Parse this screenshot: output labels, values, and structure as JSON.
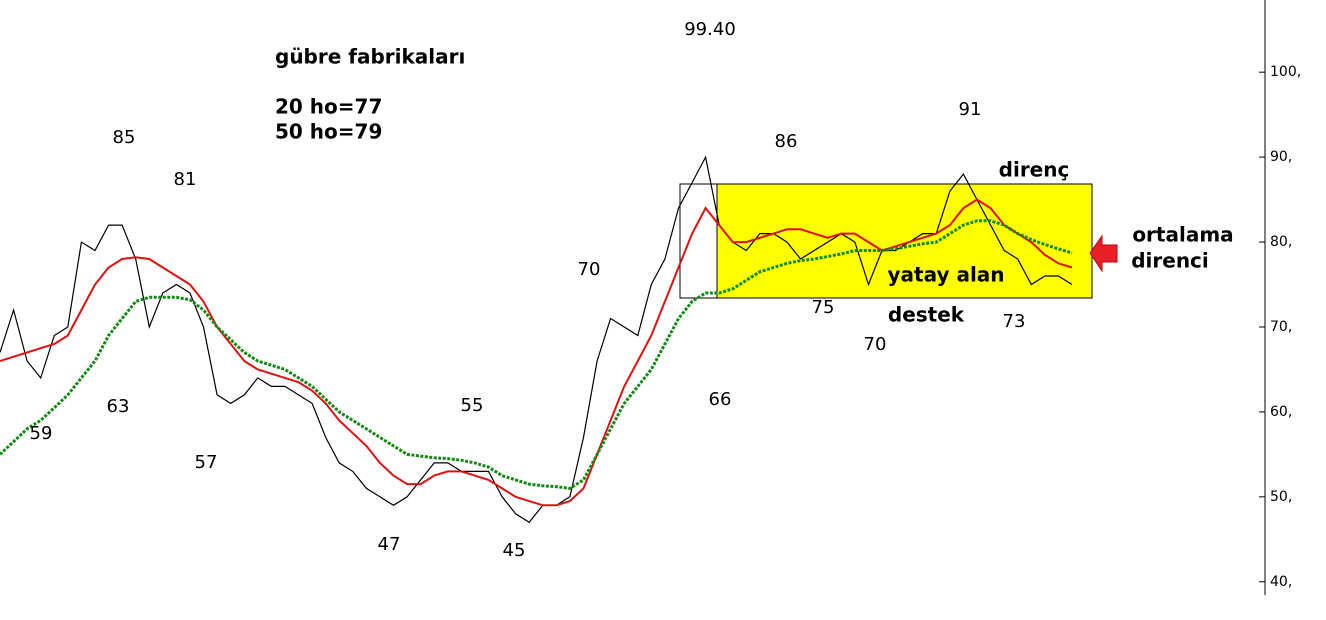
{
  "chart_data": {
    "type": "line",
    "title": "gübre fabrikaları",
    "ylim": [
      35.5,
      108.5
    ],
    "yticks": [
      {
        "value": 40,
        "label": "40,"
      },
      {
        "value": 50,
        "label": "50,"
      },
      {
        "value": 60,
        "label": "60,"
      },
      {
        "value": 70,
        "label": "70,"
      },
      {
        "value": 80,
        "label": "80,"
      },
      {
        "value": 90,
        "label": "90,"
      },
      {
        "value": 100,
        "label": "100,"
      }
    ],
    "series": [
      {
        "color": "#000000",
        "values": [
          67,
          72,
          66,
          64,
          69,
          70,
          80,
          79,
          82,
          82,
          78,
          70,
          74,
          75,
          74,
          70,
          62,
          61,
          62,
          64,
          63,
          63,
          62,
          61,
          57,
          54,
          53,
          51,
          50,
          49,
          50,
          52,
          54,
          54,
          53,
          53,
          53,
          50,
          48,
          47,
          49,
          49,
          50,
          57,
          66,
          71,
          70,
          69,
          75,
          78,
          84,
          87,
          90,
          82,
          80,
          79,
          81,
          81,
          80,
          78,
          79,
          80,
          81,
          80,
          75,
          79,
          79,
          80,
          81,
          81,
          86,
          88,
          85,
          82,
          79,
          78,
          75,
          76,
          76,
          75
        ]
      },
      {
        "name": "20 ho=77",
        "color": "#e01010",
        "values": [
          66,
          66.5,
          67,
          67.5,
          68,
          69,
          72,
          75,
          77,
          78,
          78.2,
          78,
          77,
          76,
          75,
          73,
          70,
          68,
          66,
          65,
          64.5,
          64,
          63.5,
          62.5,
          61,
          59,
          57.5,
          56,
          54,
          52.5,
          51.5,
          51.5,
          52.5,
          53,
          53,
          52.5,
          52,
          51,
          50,
          49.5,
          49,
          49,
          49.5,
          51,
          55,
          59,
          63,
          66,
          69,
          73,
          77,
          81,
          84,
          82,
          80,
          80,
          80.5,
          81,
          81.5,
          81.5,
          81,
          80.5,
          81,
          81,
          80,
          79,
          79.5,
          80,
          80.5,
          81,
          82,
          84,
          85,
          84,
          82,
          81,
          80,
          78.5,
          77.5,
          77
        ]
      },
      {
        "name": "50 ho=79",
        "color": "#128a12",
        "values": [
          55,
          56.5,
          58,
          59,
          60.5,
          62,
          64,
          66,
          69,
          71,
          73,
          73.5,
          73.5,
          73.5,
          73.2,
          72,
          70,
          68.5,
          67,
          66,
          65.5,
          65,
          64,
          63,
          61.5,
          60,
          59,
          58,
          57,
          56,
          55,
          54.8,
          54.6,
          54.5,
          54.3,
          54,
          53.5,
          52.5,
          52,
          51.5,
          51.3,
          51.2,
          51,
          52,
          55,
          58,
          61,
          63,
          65,
          68,
          71,
          73,
          74,
          74,
          74.5,
          75.5,
          76.5,
          77,
          77.5,
          77.8,
          78,
          78.3,
          78.6,
          79,
          79,
          79,
          79.2,
          79.5,
          79.8,
          80,
          81,
          82,
          82.5,
          82.5,
          82,
          81,
          80.3,
          79.7,
          79.2,
          78.7
        ]
      }
    ],
    "annotations": [
      "99.40",
      "85",
      "81",
      "59",
      "63",
      "57",
      "47",
      "55",
      "45",
      "70",
      "66",
      "86",
      "75",
      "70",
      "73",
      "91",
      "destek",
      "yatay alan",
      "direnç",
      "ortalama",
      "direnci"
    ]
  }
}
